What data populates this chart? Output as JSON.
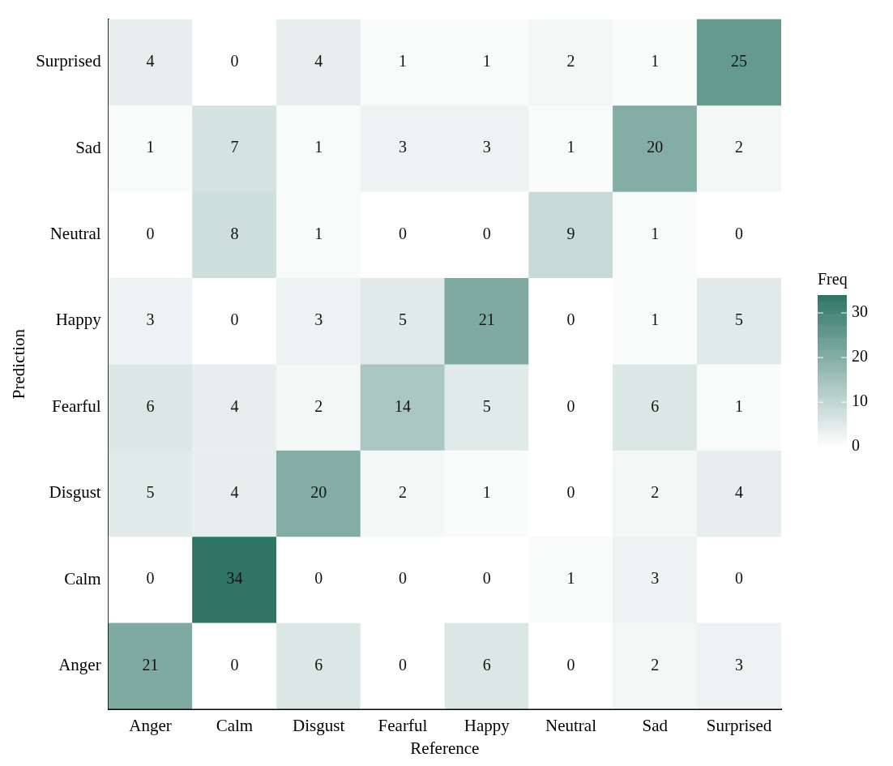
{
  "chart_data": {
    "type": "heatmap",
    "xlabel": "Reference",
    "ylabel": "Prediction",
    "legend_title": "Freq",
    "color": "#2e7566",
    "categories": [
      "Anger",
      "Calm",
      "Disgust",
      "Fearful",
      "Happy",
      "Neutral",
      "Sad",
      "Surprised"
    ],
    "y_categories": [
      "Surprised",
      "Sad",
      "Neutral",
      "Happy",
      "Fearful",
      "Disgust",
      "Calm",
      "Anger"
    ],
    "cells": [
      [
        4,
        0,
        4,
        1,
        1,
        2,
        1,
        25
      ],
      [
        1,
        7,
        1,
        3,
        3,
        1,
        20,
        2
      ],
      [
        0,
        8,
        1,
        0,
        0,
        9,
        1,
        0
      ],
      [
        3,
        0,
        3,
        5,
        21,
        0,
        1,
        5
      ],
      [
        6,
        4,
        2,
        14,
        5,
        0,
        6,
        1
      ],
      [
        5,
        4,
        20,
        2,
        1,
        0,
        2,
        4
      ],
      [
        0,
        34,
        0,
        0,
        0,
        1,
        3,
        0
      ],
      [
        21,
        0,
        6,
        0,
        6,
        0,
        2,
        3
      ]
    ],
    "clim": [
      0,
      34
    ],
    "cticks": [
      0,
      10,
      20,
      30
    ],
    "data_labels": true,
    "grid": false
  }
}
